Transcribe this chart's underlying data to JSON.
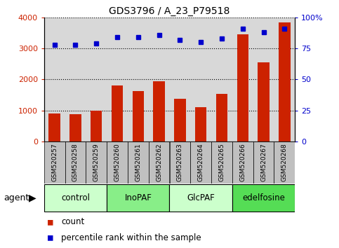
{
  "title": "GDS3796 / A_23_P79518",
  "samples": [
    "GSM520257",
    "GSM520258",
    "GSM520259",
    "GSM520260",
    "GSM520261",
    "GSM520262",
    "GSM520263",
    "GSM520264",
    "GSM520265",
    "GSM520266",
    "GSM520267",
    "GSM520268"
  ],
  "counts": [
    900,
    870,
    1000,
    1800,
    1620,
    1930,
    1380,
    1100,
    1530,
    3450,
    2560,
    3830
  ],
  "percentile_ranks": [
    78,
    78,
    79,
    84,
    84,
    86,
    82,
    80,
    83,
    91,
    88,
    91
  ],
  "bar_color": "#cc2200",
  "dot_color": "#0000cc",
  "ylim_left": [
    0,
    4000
  ],
  "ylim_right": [
    0,
    100
  ],
  "yticks_left": [
    0,
    1000,
    2000,
    3000,
    4000
  ],
  "ytick_labels_left": [
    "0",
    "1000",
    "2000",
    "3000",
    "4000"
  ],
  "yticks_right": [
    0,
    25,
    50,
    75,
    100
  ],
  "ytick_labels_right": [
    "0",
    "25",
    "50",
    "75",
    "100%"
  ],
  "groups": [
    {
      "label": "control",
      "start": 0,
      "end": 3,
      "color": "#ccffcc"
    },
    {
      "label": "InoPAF",
      "start": 3,
      "end": 6,
      "color": "#88ee88"
    },
    {
      "label": "GlcPAF",
      "start": 6,
      "end": 9,
      "color": "#ccffcc"
    },
    {
      "label": "edelfosine",
      "start": 9,
      "end": 12,
      "color": "#55dd55"
    }
  ],
  "legend_items": [
    {
      "label": "count",
      "color": "#cc2200"
    },
    {
      "label": "percentile rank within the sample",
      "color": "#0000cc"
    }
  ],
  "agent_label": "agent",
  "plot_bg_color": "#d8d8d8",
  "tick_box_color": "#c0c0c0",
  "grid_linestyle": ":",
  "grid_linewidth": 0.8
}
